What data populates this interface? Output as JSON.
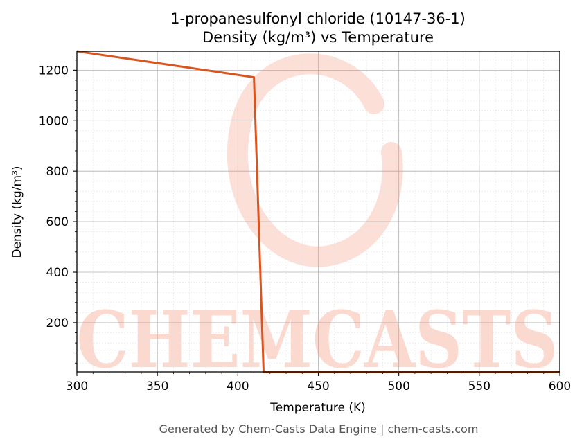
{
  "colors": {
    "line": "#d9541e",
    "watermark": "#fcd9cf",
    "grid_major": "#b0b0b0",
    "grid_minor": "#e3e3e3",
    "footer": "#555555"
  },
  "watermark": {
    "text": "CHEMCASTS"
  },
  "footer": "Generated by Chem-Casts Data Engine | chem-casts.com",
  "chart_data": {
    "type": "line",
    "title": "1-propanesulfonyl chloride (10147-36-1)",
    "subtitle": "Density (kg/m³) vs Temperature",
    "xlabel": "Temperature (K)",
    "ylabel": "Density (kg/m³)",
    "xlim": [
      300,
      600
    ],
    "ylim": [
      5,
      1275
    ],
    "xticks": [
      300,
      350,
      400,
      450,
      500,
      550,
      600
    ],
    "yticks": [
      200,
      400,
      600,
      800,
      1000,
      1200
    ],
    "grid": true,
    "legend": "none",
    "series": [
      {
        "x": [
          300,
          410,
          416,
          600
        ],
        "y": [
          1275,
          1172,
          5,
          5
        ]
      }
    ]
  }
}
